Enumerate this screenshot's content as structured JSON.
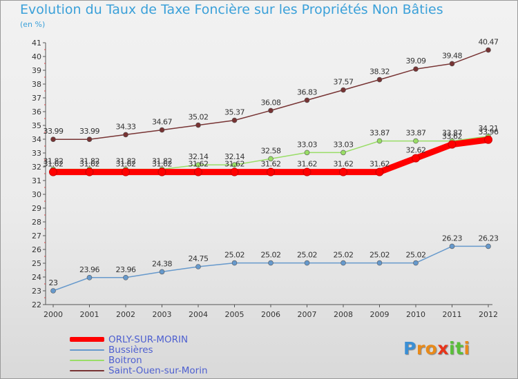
{
  "chart_data": {
    "type": "line",
    "title": "Evolution du Taux de Taxe Foncière sur les Propriétés Non Bâties",
    "ylabel": "(en %)",
    "xlabel": "",
    "categories": [
      "2000",
      "2001",
      "2002",
      "2003",
      "2004",
      "2005",
      "2006",
      "2007",
      "2008",
      "2009",
      "2010",
      "2011",
      "2012"
    ],
    "ylim": [
      22,
      41
    ],
    "yticks": [
      "22",
      "23",
      "24",
      "25",
      "26",
      "27",
      "28",
      "29",
      "30",
      "31",
      "32",
      "33",
      "34",
      "35",
      "36",
      "37",
      "38",
      "39",
      "40",
      "41"
    ],
    "grid": false,
    "legend_position": "bottom-left",
    "series": [
      {
        "name": "ORLY-SUR-MORIN",
        "color": "#ff0000",
        "values": [
          31.62,
          31.62,
          31.62,
          31.62,
          31.62,
          31.62,
          31.62,
          31.62,
          31.62,
          31.62,
          32.62,
          33.62,
          33.96
        ],
        "labels": [
          "31.62",
          "31.62",
          "31.62",
          "31.62",
          "31.62",
          "31.62",
          "31.62",
          "31.62",
          "31.62",
          "31.62",
          "32.62",
          "33.62",
          "33.96"
        ]
      },
      {
        "name": "Bussières",
        "color": "#6699cc",
        "values": [
          23,
          23.96,
          23.96,
          24.38,
          24.75,
          25.02,
          25.02,
          25.02,
          25.02,
          25.02,
          25.02,
          26.23,
          26.23
        ],
        "labels": [
          "23",
          "23.96",
          "23.96",
          "24.38",
          "24.75",
          "25.02",
          "25.02",
          "25.02",
          "25.02",
          "25.02",
          "25.02",
          "26.23",
          "26.23"
        ]
      },
      {
        "name": "Boitron",
        "color": "#99dd66",
        "values": [
          31.82,
          31.82,
          31.82,
          31.82,
          32.14,
          32.14,
          32.58,
          33.03,
          33.03,
          33.87,
          33.87,
          33.87,
          34.21
        ],
        "labels": [
          "31.82",
          "31.82",
          "31.82",
          "31.82",
          "32.14",
          "32.14",
          "32.58",
          "33.03",
          "33.03",
          "33.87",
          "33.87",
          "33.87",
          "34.21"
        ]
      },
      {
        "name": "Saint-Ouen-sur-Morin",
        "color": "#773333",
        "values": [
          33.99,
          33.99,
          34.33,
          34.67,
          35.02,
          35.37,
          36.08,
          36.83,
          37.57,
          38.32,
          39.09,
          39.48,
          40.47
        ],
        "labels": [
          "33.99",
          "33.99",
          "34.33",
          "34.67",
          "35.02",
          "35.37",
          "36.08",
          "36.83",
          "37.57",
          "38.32",
          "39.09",
          "39.48",
          "40.47"
        ]
      }
    ]
  },
  "logo": {
    "letters": [
      "P",
      "r",
      "o",
      "x",
      "i",
      "t",
      "i"
    ],
    "colors": [
      "#3b8fd4",
      "#e88a1a",
      "#e88a1a",
      "#e8341a",
      "#5abf3a",
      "#5abf3a",
      "#e88a1a"
    ]
  }
}
